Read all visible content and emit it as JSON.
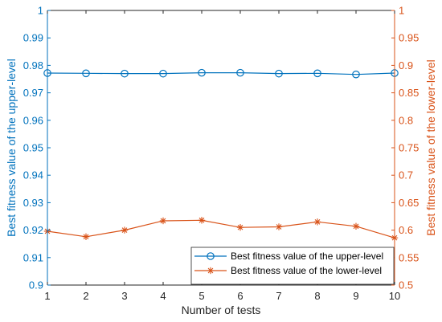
{
  "chart_data": {
    "type": "line",
    "x": [
      1,
      2,
      3,
      4,
      5,
      6,
      7,
      8,
      9,
      10
    ],
    "xlabel": "Number of tests",
    "xlim": [
      1,
      10
    ],
    "xticks": [
      "1",
      "2",
      "3",
      "4",
      "5",
      "6",
      "7",
      "8",
      "9",
      "10"
    ],
    "left_axis": {
      "label": "Best fitness value of the upper-level",
      "lim": [
        0.9,
        1.0
      ],
      "ticks": [
        "0.9",
        "0.91",
        "0.92",
        "0.93",
        "0.94",
        "0.95",
        "0.96",
        "0.97",
        "0.98",
        "0.99",
        "1"
      ],
      "color": "#0072BD"
    },
    "right_axis": {
      "label": "Best fitness value of the lower-level",
      "lim": [
        0.5,
        1.0
      ],
      "ticks": [
        "0.5",
        "0.55",
        "0.6",
        "0.65",
        "0.7",
        "0.75",
        "0.8",
        "0.85",
        "0.9",
        "0.95",
        "1"
      ],
      "color": "#D95319"
    },
    "series": [
      {
        "name": "Best fitness value of the upper-level",
        "axis": "left",
        "marker": "circle",
        "color": "#0072BD",
        "values": [
          0.9772,
          0.9771,
          0.977,
          0.977,
          0.9773,
          0.9773,
          0.977,
          0.9771,
          0.9767,
          0.9772
        ]
      },
      {
        "name": "Best fitness value of the lower-level",
        "axis": "right",
        "marker": "star",
        "color": "#D95319",
        "values": [
          0.598,
          0.588,
          0.6,
          0.617,
          0.618,
          0.605,
          0.606,
          0.615,
          0.607,
          0.586
        ]
      }
    ],
    "legend_position": "bottom-right",
    "grid": false
  }
}
